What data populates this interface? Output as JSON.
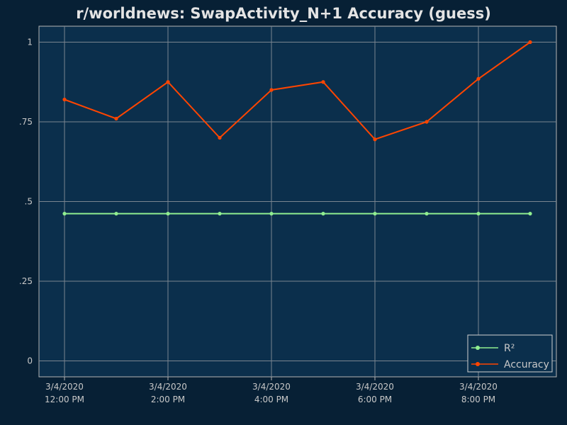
{
  "chart_data": {
    "type": "line",
    "title": "r/worldnews: SwapActivity_N+1 Accuracy (guess)",
    "xlabel": "",
    "ylabel": "",
    "x": [
      "3/4/2020 12:00 PM",
      "3/4/2020 1:00 PM",
      "3/4/2020 2:00 PM",
      "3/4/2020 3:00 PM",
      "3/4/2020 4:00 PM",
      "3/4/2020 5:00 PM",
      "3/4/2020 6:00 PM",
      "3/4/2020 7:00 PM",
      "3/4/2020 8:00 PM",
      "3/4/2020 9:00 PM"
    ],
    "x_ticks": [
      {
        "index": 0,
        "line1": "3/4/2020",
        "line2": "12:00 PM"
      },
      {
        "index": 2,
        "line1": "3/4/2020",
        "line2": "2:00 PM"
      },
      {
        "index": 4,
        "line1": "3/4/2020",
        "line2": "4:00 PM"
      },
      {
        "index": 6,
        "line1": "3/4/2020",
        "line2": "6:00 PM"
      },
      {
        "index": 8,
        "line1": "3/4/2020",
        "line2": "8:00 PM"
      }
    ],
    "y_ticks": [
      {
        "value": 0,
        "label": "0"
      },
      {
        "value": 0.25,
        "label": ".25"
      },
      {
        "value": 0.5,
        "label": ".5"
      },
      {
        "value": 0.75,
        "label": ".75"
      },
      {
        "value": 1,
        "label": "1"
      }
    ],
    "ylim": [
      -0.05,
      1.05
    ],
    "grid": true,
    "legend_position": "bottom-right",
    "series": [
      {
        "name": "R²",
        "color": "#90ee90",
        "values": [
          0.462,
          0.462,
          0.462,
          0.462,
          0.462,
          0.462,
          0.462,
          0.462,
          0.462,
          0.462
        ]
      },
      {
        "name": "Accuracy",
        "color": "#ff4500",
        "values": [
          0.82,
          0.76,
          0.875,
          0.7,
          0.85,
          0.875,
          0.695,
          0.75,
          0.885,
          1.0
        ]
      }
    ]
  }
}
